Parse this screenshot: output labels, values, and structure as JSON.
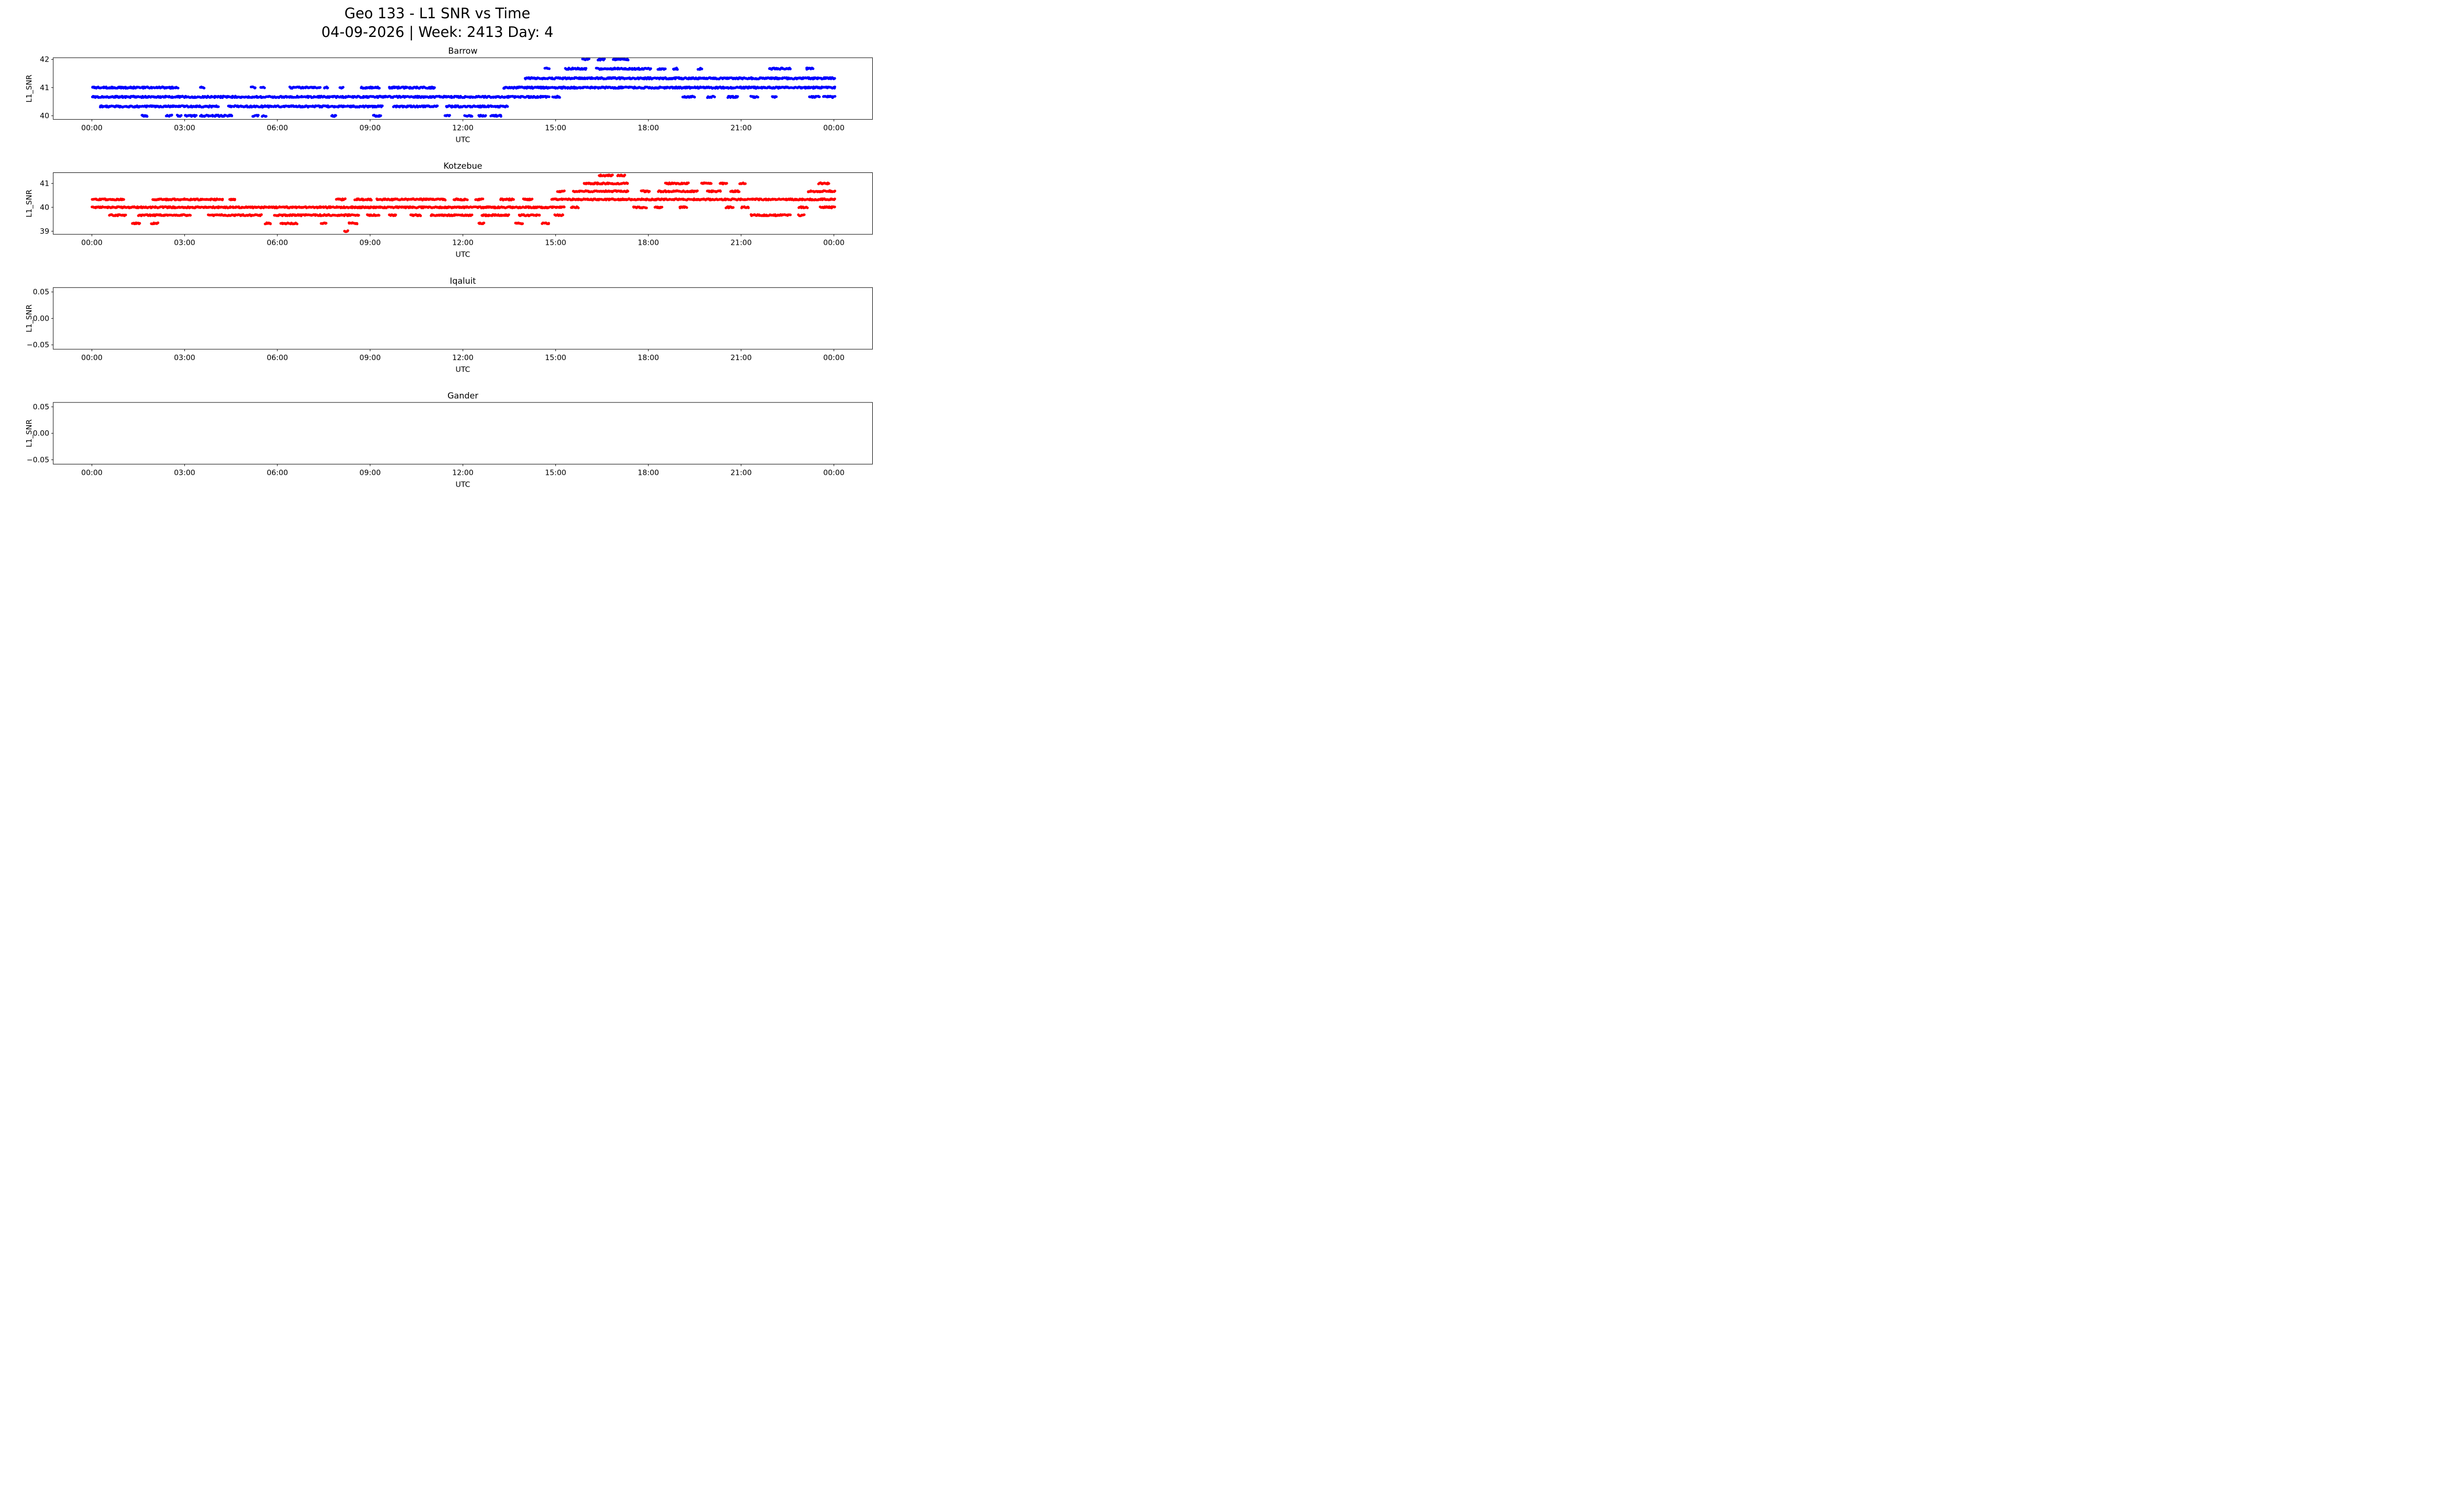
{
  "figure": {
    "suptitle_line1": "Geo 133 - L1 SNR vs Time",
    "suptitle_line2": "04-09-2026 | Week: 2413 Day: 4",
    "background": "#ffffff"
  },
  "chart_data": [
    {
      "type": "scatter",
      "title": "Barrow",
      "xlabel": "UTC",
      "ylabel": "L1_SNR",
      "color": "#0000ff",
      "xlim": [
        -1.25,
        25.25
      ],
      "xticks": [
        0,
        3,
        6,
        9,
        12,
        15,
        18,
        21,
        24
      ],
      "xtick_labels": [
        "00:00",
        "03:00",
        "06:00",
        "09:00",
        "12:00",
        "15:00",
        "18:00",
        "21:00",
        "00:00"
      ],
      "ylim": [
        39.87,
        42.06
      ],
      "yticks": [
        40,
        41,
        42
      ],
      "ytick_labels": [
        "40",
        "41",
        "42"
      ],
      "bands": [
        {
          "snr": 40.0,
          "segments": [
            [
              1.6,
              1.8
            ],
            [
              2.4,
              2.6
            ],
            [
              2.75,
              2.9
            ],
            [
              3.0,
              3.4
            ],
            [
              3.5,
              4.55
            ],
            [
              5.2,
              5.4
            ],
            [
              5.5,
              5.65
            ],
            [
              7.75,
              7.9
            ],
            [
              9.1,
              9.35
            ],
            [
              11.4,
              11.6
            ],
            [
              12.05,
              12.3
            ],
            [
              12.5,
              12.75
            ],
            [
              12.9,
              13.25
            ]
          ]
        },
        {
          "snr": 40.33,
          "segments": [
            [
              0.25,
              4.1
            ],
            [
              4.4,
              9.4
            ],
            [
              9.75,
              11.2
            ],
            [
              11.45,
              13.45
            ]
          ]
        },
        {
          "snr": 40.67,
          "segments": [
            [
              0.0,
              14.8
            ],
            [
              14.9,
              15.15
            ],
            [
              19.1,
              19.5
            ],
            [
              19.9,
              20.15
            ],
            [
              20.55,
              20.9
            ],
            [
              21.3,
              21.55
            ],
            [
              22.0,
              22.15
            ],
            [
              23.2,
              23.55
            ],
            [
              23.65,
              24.05
            ]
          ]
        },
        {
          "snr": 41.0,
          "segments": [
            [
              0.0,
              2.8
            ],
            [
              3.5,
              3.65
            ],
            [
              5.15,
              5.3
            ],
            [
              5.45,
              5.6
            ],
            [
              6.4,
              7.4
            ],
            [
              7.5,
              7.65
            ],
            [
              8.0,
              8.15
            ],
            [
              8.7,
              9.3
            ],
            [
              9.6,
              11.1
            ],
            [
              13.3,
              24.05
            ]
          ]
        },
        {
          "snr": 41.33,
          "segments": [
            [
              14.0,
              24.05
            ]
          ]
        },
        {
          "snr": 41.67,
          "segments": [
            [
              14.65,
              14.8
            ],
            [
              15.3,
              16.0
            ],
            [
              16.3,
              18.1
            ],
            [
              18.3,
              18.55
            ],
            [
              18.8,
              18.95
            ],
            [
              19.6,
              19.75
            ],
            [
              21.9,
              22.6
            ],
            [
              23.1,
              23.35
            ]
          ]
        },
        {
          "snr": 42.0,
          "segments": [
            [
              15.85,
              16.1
            ],
            [
              16.35,
              16.6
            ],
            [
              16.85,
              17.35
            ]
          ]
        }
      ]
    },
    {
      "type": "scatter",
      "title": "Kotzebue",
      "xlabel": "UTC",
      "ylabel": "L1_SNR",
      "color": "#ff0000",
      "xlim": [
        -1.25,
        25.25
      ],
      "xticks": [
        0,
        3,
        6,
        9,
        12,
        15,
        18,
        21,
        24
      ],
      "xtick_labels": [
        "00:00",
        "03:00",
        "06:00",
        "09:00",
        "12:00",
        "15:00",
        "18:00",
        "21:00",
        "00:00"
      ],
      "ylim": [
        38.87,
        41.45
      ],
      "yticks": [
        39,
        40,
        41
      ],
      "ytick_labels": [
        "39",
        "40",
        "41"
      ],
      "bands": [
        {
          "snr": 39.0,
          "segments": [
            [
              8.15,
              8.3
            ]
          ]
        },
        {
          "snr": 39.33,
          "segments": [
            [
              1.3,
              1.55
            ],
            [
              1.9,
              2.15
            ],
            [
              5.6,
              5.8
            ],
            [
              6.1,
              6.65
            ],
            [
              7.4,
              7.6
            ],
            [
              8.3,
              8.6
            ],
            [
              12.5,
              12.7
            ],
            [
              13.7,
              13.95
            ],
            [
              14.55,
              14.8
            ]
          ]
        },
        {
          "snr": 39.67,
          "segments": [
            [
              0.55,
              1.1
            ],
            [
              1.5,
              3.2
            ],
            [
              3.75,
              5.5
            ],
            [
              5.9,
              8.65
            ],
            [
              8.9,
              9.3
            ],
            [
              9.6,
              9.85
            ],
            [
              10.3,
              10.65
            ],
            [
              10.95,
              12.3
            ],
            [
              12.6,
              13.5
            ],
            [
              13.8,
              14.5
            ],
            [
              14.95,
              15.25
            ],
            [
              21.3,
              22.6
            ],
            [
              22.85,
              23.05
            ]
          ]
        },
        {
          "snr": 40.0,
          "segments": [
            [
              0.0,
              15.3
            ],
            [
              15.5,
              15.75
            ],
            [
              17.5,
              17.95
            ],
            [
              18.2,
              18.45
            ],
            [
              19.0,
              19.25
            ],
            [
              20.5,
              20.75
            ],
            [
              21.0,
              21.25
            ],
            [
              22.85,
              23.15
            ],
            [
              23.55,
              24.05
            ]
          ]
        },
        {
          "snr": 40.33,
          "segments": [
            [
              0.0,
              1.05
            ],
            [
              1.95,
              4.25
            ],
            [
              4.45,
              4.65
            ],
            [
              7.9,
              8.2
            ],
            [
              8.5,
              9.05
            ],
            [
              9.2,
              11.45
            ],
            [
              11.7,
              12.15
            ],
            [
              12.4,
              12.65
            ],
            [
              13.2,
              13.65
            ],
            [
              13.95,
              14.25
            ],
            [
              14.85,
              24.05
            ]
          ]
        },
        {
          "snr": 40.67,
          "segments": [
            [
              15.05,
              15.3
            ],
            [
              15.55,
              17.35
            ],
            [
              17.75,
              18.05
            ],
            [
              18.3,
              19.6
            ],
            [
              19.9,
              20.35
            ],
            [
              20.65,
              20.95
            ],
            [
              23.15,
              24.05
            ]
          ]
        },
        {
          "snr": 41.0,
          "segments": [
            [
              15.9,
              17.35
            ],
            [
              18.55,
              19.3
            ],
            [
              19.7,
              20.05
            ],
            [
              20.3,
              20.55
            ],
            [
              20.95,
              21.15
            ],
            [
              23.5,
              23.85
            ]
          ]
        },
        {
          "snr": 41.33,
          "segments": [
            [
              16.4,
              16.85
            ],
            [
              17.0,
              17.25
            ]
          ]
        }
      ]
    },
    {
      "type": "scatter",
      "title": "Iqaluit",
      "xlabel": "UTC",
      "ylabel": "L1_SNR",
      "color": "#0000ff",
      "xlim": [
        -1.25,
        25.25
      ],
      "xticks": [
        0,
        3,
        6,
        9,
        12,
        15,
        18,
        21,
        24
      ],
      "xtick_labels": [
        "00:00",
        "03:00",
        "06:00",
        "09:00",
        "12:00",
        "15:00",
        "18:00",
        "21:00",
        "00:00"
      ],
      "ylim": [
        -0.0583,
        0.0583
      ],
      "yticks": [
        -0.05,
        0.0,
        0.05
      ],
      "ytick_labels": [
        "−0.05",
        "0.00",
        "0.05"
      ],
      "bands": []
    },
    {
      "type": "scatter",
      "title": "Gander",
      "xlabel": "UTC",
      "ylabel": "L1_SNR",
      "color": "#0000ff",
      "xlim": [
        -1.25,
        25.25
      ],
      "xticks": [
        0,
        3,
        6,
        9,
        12,
        15,
        18,
        21,
        24
      ],
      "xtick_labels": [
        "00:00",
        "03:00",
        "06:00",
        "09:00",
        "12:00",
        "15:00",
        "18:00",
        "21:00",
        "00:00"
      ],
      "ylim": [
        -0.0583,
        0.0583
      ],
      "yticks": [
        -0.05,
        0.0,
        0.05
      ],
      "ytick_labels": [
        "−0.05",
        "0.00",
        "0.05"
      ],
      "bands": []
    }
  ]
}
